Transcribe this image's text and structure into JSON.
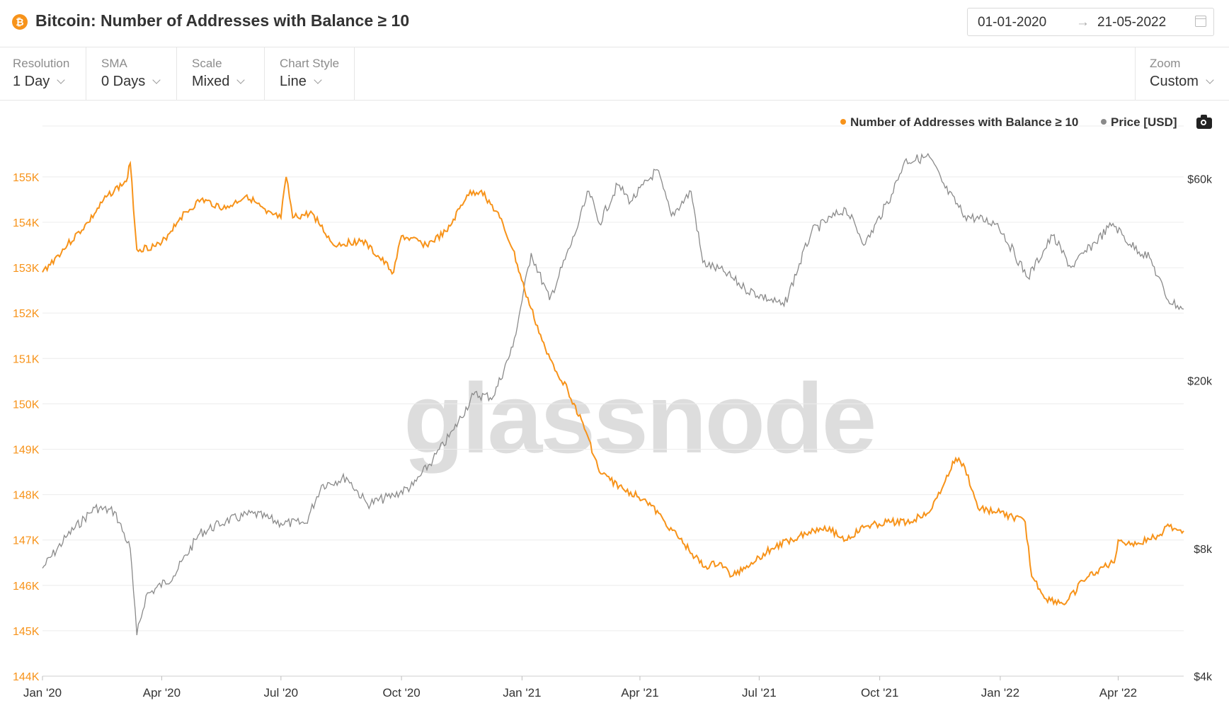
{
  "header": {
    "title": "Bitcoin: Number of Addresses with Balance ≥ 10",
    "coin_icon": "bitcoin-icon",
    "date_from": "01-01-2020",
    "date_arrow": "→",
    "date_to": "21-05-2022"
  },
  "toolbar": {
    "resolution": {
      "label": "Resolution",
      "value": "1 Day"
    },
    "sma": {
      "label": "SMA",
      "value": "0 Days"
    },
    "scale": {
      "label": "Scale",
      "value": "Mixed"
    },
    "chart_style": {
      "label": "Chart Style",
      "value": "Line"
    },
    "zoom": {
      "label": "Zoom",
      "value": "Custom"
    }
  },
  "watermark": "glassnode",
  "colors": {
    "addresses": "#f7931a",
    "price": "#8a8a8a",
    "grid": "#ececec"
  },
  "chart_data": {
    "type": "line",
    "legend": "top-right",
    "grid": true,
    "series": [
      {
        "name": "Number of Addresses with Balance ≥ 10",
        "axis": "left",
        "color": "#f7931a",
        "points": [
          [
            "2020-01-01",
            152900
          ],
          [
            "2020-01-20",
            153500
          ],
          [
            "2020-02-05",
            154000
          ],
          [
            "2020-02-20",
            154600
          ],
          [
            "2020-03-05",
            154900
          ],
          [
            "2020-03-08",
            155300
          ],
          [
            "2020-03-13",
            153400
          ],
          [
            "2020-03-31",
            153500
          ],
          [
            "2020-04-15",
            154100
          ],
          [
            "2020-05-01",
            154500
          ],
          [
            "2020-05-20",
            154300
          ],
          [
            "2020-06-05",
            154600
          ],
          [
            "2020-06-20",
            154200
          ],
          [
            "2020-07-01",
            154100
          ],
          [
            "2020-07-05",
            155000
          ],
          [
            "2020-07-10",
            154100
          ],
          [
            "2020-07-25",
            154200
          ],
          [
            "2020-08-10",
            153500
          ],
          [
            "2020-09-01",
            153600
          ],
          [
            "2020-09-25",
            152900
          ],
          [
            "2020-10-01",
            153700
          ],
          [
            "2020-10-20",
            153500
          ],
          [
            "2020-11-05",
            153800
          ],
          [
            "2020-11-20",
            154600
          ],
          [
            "2020-12-01",
            154700
          ],
          [
            "2020-12-15",
            154100
          ],
          [
            "2020-12-25",
            153400
          ],
          [
            "2021-01-03",
            152500
          ],
          [
            "2021-01-20",
            151100
          ],
          [
            "2021-02-05",
            150300
          ],
          [
            "2021-02-20",
            149300
          ],
          [
            "2021-03-01",
            148500
          ],
          [
            "2021-03-20",
            148100
          ],
          [
            "2021-04-05",
            147900
          ],
          [
            "2021-04-20",
            147400
          ],
          [
            "2021-05-05",
            146900
          ],
          [
            "2021-05-20",
            146400
          ],
          [
            "2021-06-01",
            146500
          ],
          [
            "2021-06-10",
            146200
          ],
          [
            "2021-06-25",
            146500
          ],
          [
            "2021-07-10",
            146800
          ],
          [
            "2021-08-01",
            147100
          ],
          [
            "2021-08-20",
            147300
          ],
          [
            "2021-09-05",
            147000
          ],
          [
            "2021-09-20",
            147300
          ],
          [
            "2021-10-10",
            147400
          ],
          [
            "2021-10-25",
            147400
          ],
          [
            "2021-11-10",
            147700
          ],
          [
            "2021-11-20",
            148300
          ],
          [
            "2021-11-28",
            148800
          ],
          [
            "2021-12-05",
            148600
          ],
          [
            "2021-12-15",
            147700
          ],
          [
            "2022-01-01",
            147600
          ],
          [
            "2022-01-20",
            147400
          ],
          [
            "2022-01-25",
            146200
          ],
          [
            "2022-02-05",
            145700
          ],
          [
            "2022-02-20",
            145600
          ],
          [
            "2022-03-05",
            146100
          ],
          [
            "2022-03-20",
            146400
          ],
          [
            "2022-03-29",
            146500
          ],
          [
            "2022-04-01",
            147000
          ],
          [
            "2022-04-15",
            146900
          ],
          [
            "2022-05-01",
            147100
          ],
          [
            "2022-05-10",
            147300
          ],
          [
            "2022-05-21",
            147200
          ]
        ]
      },
      {
        "name": "Price [USD]",
        "axis": "right",
        "color": "#8a8a8a",
        "points": [
          [
            "2020-01-01",
            7200
          ],
          [
            "2020-01-20",
            8600
          ],
          [
            "2020-02-10",
            10000
          ],
          [
            "2020-02-25",
            9800
          ],
          [
            "2020-03-08",
            8000
          ],
          [
            "2020-03-13",
            5000
          ],
          [
            "2020-03-20",
            6200
          ],
          [
            "2020-04-10",
            6900
          ],
          [
            "2020-04-30",
            8700
          ],
          [
            "2020-05-20",
            9300
          ],
          [
            "2020-06-10",
            9700
          ],
          [
            "2020-07-01",
            9200
          ],
          [
            "2020-07-20",
            9200
          ],
          [
            "2020-08-01",
            11300
          ],
          [
            "2020-08-20",
            11800
          ],
          [
            "2020-09-05",
            10200
          ],
          [
            "2020-09-25",
            10700
          ],
          [
            "2020-10-10",
            11300
          ],
          [
            "2020-10-25",
            13000
          ],
          [
            "2020-11-10",
            15300
          ],
          [
            "2020-11-25",
            18500
          ],
          [
            "2020-12-10",
            18300
          ],
          [
            "2020-12-25",
            24000
          ],
          [
            "2021-01-08",
            40000
          ],
          [
            "2021-01-22",
            31000
          ],
          [
            "2021-02-10",
            44000
          ],
          [
            "2021-02-21",
            56000
          ],
          [
            "2021-03-01",
            47000
          ],
          [
            "2021-03-15",
            58000
          ],
          [
            "2021-03-25",
            53000
          ],
          [
            "2021-04-14",
            63000
          ],
          [
            "2021-04-25",
            49000
          ],
          [
            "2021-05-10",
            56000
          ],
          [
            "2021-05-19",
            38000
          ],
          [
            "2021-06-05",
            36000
          ],
          [
            "2021-06-20",
            33000
          ],
          [
            "2021-07-20",
            30000
          ],
          [
            "2021-08-10",
            45000
          ],
          [
            "2021-09-05",
            51000
          ],
          [
            "2021-09-20",
            42000
          ],
          [
            "2021-10-10",
            55000
          ],
          [
            "2021-10-20",
            66000
          ],
          [
            "2021-11-08",
            67500
          ],
          [
            "2021-11-20",
            57000
          ],
          [
            "2021-12-05",
            49000
          ],
          [
            "2021-12-30",
            47000
          ],
          [
            "2022-01-22",
            35000
          ],
          [
            "2022-02-10",
            44000
          ],
          [
            "2022-02-24",
            37000
          ],
          [
            "2022-03-28",
            47000
          ],
          [
            "2022-04-10",
            42000
          ],
          [
            "2022-04-25",
            39000
          ],
          [
            "2022-05-09",
            31000
          ],
          [
            "2022-05-21",
            29500
          ]
        ]
      }
    ],
    "x_ticks": [
      "Jan '20",
      "Apr '20",
      "Jul '20",
      "Oct '20",
      "Jan '21",
      "Apr '21",
      "Jul '21",
      "Oct '21",
      "Jan '22",
      "Apr '22"
    ],
    "xlim": [
      "2020-01-01",
      "2022-05-21"
    ],
    "y_left": {
      "ticks": [
        144000,
        145000,
        146000,
        147000,
        148000,
        149000,
        150000,
        151000,
        152000,
        153000,
        154000,
        155000
      ],
      "tick_labels": [
        "144K",
        "145K",
        "146K",
        "147K",
        "148K",
        "149K",
        "150K",
        "151K",
        "152K",
        "153K",
        "154K",
        "155K"
      ],
      "ylim": [
        144000,
        155700
      ]
    },
    "y_right": {
      "scale": "log",
      "ticks": [
        4000,
        8000,
        20000,
        60000
      ],
      "tick_labels": [
        "$4k",
        "$8k",
        "$20k",
        "$60k"
      ],
      "ylim": [
        4000,
        72000
      ]
    }
  }
}
